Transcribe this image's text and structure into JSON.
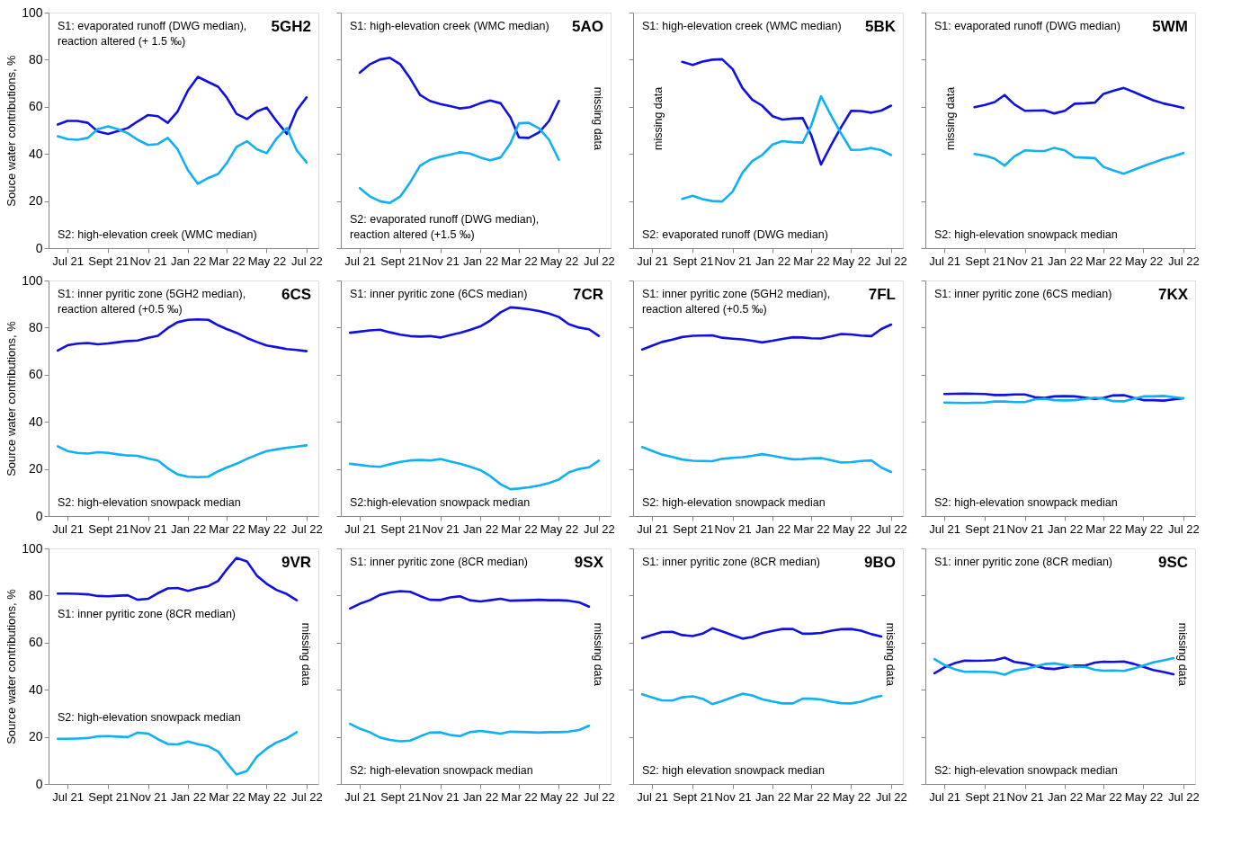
{
  "chart_data": [
    {
      "type": "line",
      "title": "5GH2",
      "ylabel": "Souce water contributions, %",
      "annotations": [
        "S1: evaporated runoff (DWG median),\n      reaction altered (+ 1.5 ‰)",
        "S2: high-elevation creek (WMC median)"
      ],
      "x": [
        "2021-06-16",
        "2021-07-01",
        "2021-07-16",
        "2021-08-01",
        "2021-08-16",
        "2021-09-01",
        "2021-09-16",
        "2021-10-01",
        "2021-10-16",
        "2021-11-01",
        "2021-11-16",
        "2021-12-01",
        "2021-12-16",
        "2022-01-01",
        "2022-01-16",
        "2022-02-01",
        "2022-02-16",
        "2022-03-01",
        "2022-03-16",
        "2022-04-01",
        "2022-04-16",
        "2022-05-01",
        "2022-05-16",
        "2022-06-01",
        "2022-06-16",
        "2022-07-01"
      ],
      "xlim": [
        "2021-06-02",
        "2022-07-19"
      ],
      "xticks": [
        {
          "value": "2021-07-01",
          "label": "Jul 21"
        },
        {
          "value": "2021-09-01",
          "label": "Sept 21"
        },
        {
          "value": "2021-11-01",
          "label": "Nov 21"
        },
        {
          "value": "2022-01-01",
          "label": "Jan 22"
        },
        {
          "value": "2022-03-01",
          "label": "Mar 22"
        },
        {
          "value": "2022-05-01",
          "label": "May 22"
        },
        {
          "value": "2022-07-01",
          "label": "Jul 22"
        }
      ],
      "ylim": [
        0,
        100
      ],
      "yticks": [
        0,
        20,
        40,
        60,
        80,
        100
      ],
      "series": [
        {
          "color": "#1010e0",
          "values": [
            52.5,
            54,
            54,
            53.2,
            49.5,
            48.5,
            49.7,
            51,
            53.8,
            56.5,
            56,
            53.2,
            58,
            67,
            72.7,
            70.5,
            68.5,
            64,
            57,
            54.8,
            58,
            59.7,
            54,
            48.5,
            58.5,
            64
          ]
        },
        {
          "color": "#10b0f5",
          "values": [
            47.5,
            46.3,
            46,
            46.8,
            50.5,
            51.7,
            50.5,
            48.8,
            46,
            43.8,
            44.2,
            46.8,
            42,
            33,
            27.3,
            29.8,
            31.5,
            36,
            43,
            45.4,
            42,
            40.3,
            46.5,
            51,
            41.5,
            36.4
          ]
        }
      ]
    },
    {
      "type": "line",
      "title": "5AO",
      "tick_labels": "x",
      "annotations": [
        "S1: high-elevation creek (WMC median)",
        "S2: evaporated runoff (DWG median),\n      reaction altered (+1.5 ‰)",
        "missing data"
      ],
      "x": [
        "2021-07-01",
        "2021-07-16",
        "2021-08-01",
        "2021-08-16",
        "2021-09-01",
        "2021-09-16",
        "2021-10-01",
        "2021-10-16",
        "2021-11-01",
        "2021-11-16",
        "2021-12-01",
        "2021-12-16",
        "2022-01-01",
        "2022-01-16",
        "2022-02-01",
        "2022-02-16",
        "2022-03-01",
        "2022-03-16",
        "2022-04-01",
        "2022-04-16",
        "2022-05-01"
      ],
      "xlim": [
        "2021-06-02",
        "2022-07-19"
      ],
      "xticks": [
        {
          "value": "2021-07-01",
          "label": "Jul 21"
        },
        {
          "value": "2021-09-01",
          "label": "Sept 21"
        },
        {
          "value": "2021-11-01",
          "label": "Nov 21"
        },
        {
          "value": "2022-01-01",
          "label": "Jan 22"
        },
        {
          "value": "2022-03-01",
          "label": "Mar 22"
        },
        {
          "value": "2022-05-01",
          "label": "May 22"
        },
        {
          "value": "2022-07-01",
          "label": "Jul 22"
        }
      ],
      "ylim": [
        0,
        100
      ],
      "yticks": [
        0,
        20,
        40,
        60,
        80,
        100
      ],
      "series": [
        {
          "color": "#1010e0",
          "values": [
            74.5,
            78,
            80.1,
            80.8,
            78,
            72,
            65,
            62.5,
            61.2,
            60.3,
            59.3,
            59.8,
            61.5,
            62.7,
            61.5,
            55.5,
            47,
            46.8,
            49.2,
            54,
            62.5
          ]
        },
        {
          "color": "#10b0f5",
          "values": [
            25.5,
            22,
            19.9,
            19.2,
            22,
            28,
            35,
            37.5,
            38.8,
            39.7,
            40.7,
            40.2,
            38.5,
            37.3,
            38.5,
            44.5,
            53,
            53.2,
            50.8,
            46,
            37.5
          ]
        }
      ]
    },
    {
      "type": "line",
      "title": "5BK",
      "tick_labels": "x",
      "annotations": [
        "S1: high-elevation creek (WMC median)",
        "S2: evaporated runoff (DWG median)",
        "missing data"
      ],
      "x": [
        "2021-08-16",
        "2021-09-01",
        "2021-09-16",
        "2021-10-01",
        "2021-10-16",
        "2021-11-01",
        "2021-11-16",
        "2021-12-01",
        "2021-12-16",
        "2022-01-01",
        "2022-01-16",
        "2022-02-01",
        "2022-02-16",
        "2022-03-01",
        "2022-03-16",
        "2022-04-01",
        "2022-04-16",
        "2022-05-01",
        "2022-05-16",
        "2022-06-01",
        "2022-06-16",
        "2022-07-01"
      ],
      "xlim": [
        "2021-06-02",
        "2022-07-19"
      ],
      "xticks": [
        {
          "value": "2021-07-01",
          "label": "Jul 21"
        },
        {
          "value": "2021-09-01",
          "label": "Sept 21"
        },
        {
          "value": "2021-11-01",
          "label": "Nov 21"
        },
        {
          "value": "2022-01-01",
          "label": "Jan 22"
        },
        {
          "value": "2022-03-01",
          "label": "Mar 22"
        },
        {
          "value": "2022-05-01",
          "label": "May 22"
        },
        {
          "value": "2022-07-01",
          "label": "Jul 22"
        }
      ],
      "ylim": [
        0,
        100
      ],
      "yticks": [
        0,
        20,
        40,
        60,
        80,
        100
      ],
      "series": [
        {
          "color": "#1010e0",
          "values": [
            79.1,
            77.8,
            79.2,
            80,
            80.2,
            76,
            68,
            63,
            60.5,
            56,
            54.6,
            55,
            55.2,
            48,
            35.5,
            44,
            51.5,
            58.3,
            58.2,
            57.5,
            58.4,
            60.5
          ]
        },
        {
          "color": "#10b0f5",
          "values": [
            20.9,
            22.2,
            20.8,
            20,
            19.8,
            24,
            32,
            37,
            39.5,
            44,
            45.4,
            45,
            44.8,
            52,
            64.5,
            56,
            48.5,
            41.7,
            41.8,
            42.5,
            41.6,
            39.5
          ]
        }
      ]
    },
    {
      "type": "line",
      "title": "5WM",
      "tick_labels": "x",
      "annotations": [
        "S1: evaporated runoff (DWG median)",
        "S2: high-elevation snowpack median",
        "missing data"
      ],
      "x": [
        "2021-08-16",
        "2021-09-01",
        "2021-09-16",
        "2021-10-01",
        "2021-10-16",
        "2021-11-01",
        "2021-11-16",
        "2021-12-01",
        "2021-12-16",
        "2022-01-01",
        "2022-01-16",
        "2022-02-01",
        "2022-02-16",
        "2022-03-01",
        "2022-03-16",
        "2022-04-01",
        "2022-04-16",
        "2022-05-01",
        "2022-05-16",
        "2022-06-01",
        "2022-06-16",
        "2022-07-01"
      ],
      "xlim": [
        "2021-06-02",
        "2022-07-19"
      ],
      "xticks": [
        {
          "value": "2021-07-01",
          "label": "Jul 21"
        },
        {
          "value": "2021-09-01",
          "label": "Sept 21"
        },
        {
          "value": "2021-11-01",
          "label": "Nov 21"
        },
        {
          "value": "2022-01-01",
          "label": "Jan 22"
        },
        {
          "value": "2022-03-01",
          "label": "Mar 22"
        },
        {
          "value": "2022-05-01",
          "label": "May 22"
        },
        {
          "value": "2022-07-01",
          "label": "Jul 22"
        }
      ],
      "ylim": [
        0,
        100
      ],
      "yticks": [
        0,
        20,
        40,
        60,
        80,
        100
      ],
      "series": [
        {
          "color": "#1010e0",
          "values": [
            59.8,
            60.8,
            62,
            65,
            61,
            58.3,
            58.4,
            58.5,
            57.2,
            58.3,
            61.3,
            61.5,
            61.8,
            65.5,
            66.8,
            68,
            66.3,
            64.5,
            62.8,
            61.4,
            60.5,
            59.5
          ]
        },
        {
          "color": "#10b0f5",
          "values": [
            40,
            39.2,
            38,
            35,
            39,
            41.5,
            41.3,
            41.2,
            42.6,
            41.5,
            38.6,
            38.4,
            38.2,
            34.5,
            33,
            31.6,
            33.2,
            34.8,
            36.3,
            37.9,
            39,
            40.4
          ]
        }
      ]
    },
    {
      "type": "line",
      "title": "6CS",
      "ylabel": "Source water contributions, %",
      "annotations": [
        "S1: inner pyritic zone (5GH2 median),\n      reaction altered (+0.5 ‰)",
        "S2: high-elevation snowpack median"
      ],
      "x": [
        "2021-06-16",
        "2021-07-01",
        "2021-07-16",
        "2021-08-01",
        "2021-08-16",
        "2021-09-01",
        "2021-09-16",
        "2021-10-01",
        "2021-10-16",
        "2021-11-01",
        "2021-11-16",
        "2021-12-01",
        "2021-12-16",
        "2022-01-01",
        "2022-01-16",
        "2022-02-01",
        "2022-02-16",
        "2022-03-01",
        "2022-03-16",
        "2022-04-01",
        "2022-04-16",
        "2022-05-01",
        "2022-05-16",
        "2022-06-01",
        "2022-06-16",
        "2022-07-01"
      ],
      "xlim": [
        "2021-06-02",
        "2022-07-19"
      ],
      "xticks": [
        {
          "value": "2021-07-01",
          "label": "Jul 21"
        },
        {
          "value": "2021-09-01",
          "label": "Sept 21"
        },
        {
          "value": "2021-11-01",
          "label": "Nov 21"
        },
        {
          "value": "2022-01-01",
          "label": "Jan 22"
        },
        {
          "value": "2022-03-01",
          "label": "Mar 22"
        },
        {
          "value": "2022-05-01",
          "label": "May 22"
        },
        {
          "value": "2022-07-01",
          "label": "Jul 22"
        }
      ],
      "ylim": [
        0,
        100
      ],
      "yticks": [
        0,
        20,
        40,
        60,
        80,
        100
      ],
      "series": [
        {
          "color": "#1010e0",
          "values": [
            70.3,
            72.5,
            73.2,
            73.5,
            72.9,
            73.3,
            73.8,
            74.3,
            74.5,
            75.7,
            76.5,
            79.8,
            82.3,
            83.3,
            83.5,
            83.3,
            81,
            79.4,
            77.8,
            75.6,
            73.9,
            72.4,
            71.7,
            70.9,
            70.5,
            70
          ]
        },
        {
          "color": "#10b0f5",
          "values": [
            29.6,
            27.6,
            26.8,
            26.5,
            27.1,
            26.8,
            26.2,
            25.7,
            25.6,
            24.4,
            23.6,
            20.3,
            17.7,
            16.7,
            16.5,
            16.7,
            19,
            20.6,
            22.2,
            24.3,
            26,
            27.6,
            28.3,
            29,
            29.5,
            30
          ]
        }
      ]
    },
    {
      "type": "line",
      "title": "7CR",
      "tick_labels": "x",
      "annotations": [
        "S1: inner pyritic zone (6CS median)",
        "S2:high-elevation snowpack median"
      ],
      "x": [
        "2021-06-16",
        "2021-07-01",
        "2021-07-16",
        "2021-08-01",
        "2021-08-16",
        "2021-09-01",
        "2021-09-16",
        "2021-10-01",
        "2021-10-16",
        "2021-11-01",
        "2021-11-16",
        "2021-12-01",
        "2021-12-16",
        "2022-01-01",
        "2022-01-16",
        "2022-02-01",
        "2022-02-16",
        "2022-03-01",
        "2022-03-16",
        "2022-04-01",
        "2022-04-16",
        "2022-05-01",
        "2022-05-16",
        "2022-06-01",
        "2022-06-16",
        "2022-07-01"
      ],
      "xlim": [
        "2021-06-02",
        "2022-07-19"
      ],
      "xticks": [
        {
          "value": "2021-07-01",
          "label": "Jul 21"
        },
        {
          "value": "2021-09-01",
          "label": "Sept 21"
        },
        {
          "value": "2021-11-01",
          "label": "Nov 21"
        },
        {
          "value": "2022-01-01",
          "label": "Jan 22"
        },
        {
          "value": "2022-03-01",
          "label": "Mar 22"
        },
        {
          "value": "2022-05-01",
          "label": "May 22"
        },
        {
          "value": "2022-07-01",
          "label": "Jul 22"
        }
      ],
      "ylim": [
        0,
        100
      ],
      "yticks": [
        0,
        20,
        40,
        60,
        80,
        100
      ],
      "series": [
        {
          "color": "#1010e0",
          "values": [
            77.8,
            78.3,
            78.8,
            79.1,
            78,
            77,
            76.4,
            76.2,
            76.4,
            75.8,
            76.8,
            77.8,
            79,
            80.5,
            83,
            86.5,
            88.6,
            88.3,
            87.8,
            87,
            86,
            84.5,
            81.5,
            80,
            79.3,
            76.5
          ]
        },
        {
          "color": "#10b0f5",
          "values": [
            22.2,
            21.7,
            21.2,
            20.9,
            22,
            23,
            23.6,
            23.8,
            23.6,
            24.2,
            23.2,
            22.2,
            21,
            19.5,
            17,
            13.5,
            11.4,
            11.7,
            12.2,
            13,
            14,
            15.5,
            18.5,
            20,
            20.7,
            23.5
          ]
        }
      ]
    },
    {
      "type": "line",
      "title": "7FL",
      "tick_labels": "x",
      "annotations": [
        "S1: inner pyritic zone (5GH2 median),\n      reaction altered (+0.5 ‰)",
        "S2: high-elevation snowpack median"
      ],
      "x": [
        "2021-06-16",
        "2021-07-01",
        "2021-07-16",
        "2021-08-01",
        "2021-08-16",
        "2021-09-01",
        "2021-09-16",
        "2021-10-01",
        "2021-10-16",
        "2021-11-01",
        "2021-11-16",
        "2021-12-01",
        "2021-12-16",
        "2022-01-01",
        "2022-01-16",
        "2022-02-01",
        "2022-02-16",
        "2022-03-01",
        "2022-03-16",
        "2022-04-01",
        "2022-04-16",
        "2022-05-01",
        "2022-05-16",
        "2022-06-01",
        "2022-06-16",
        "2022-07-01"
      ],
      "xlim": [
        "2021-06-02",
        "2022-07-19"
      ],
      "xticks": [
        {
          "value": "2021-07-01",
          "label": "Jul 21"
        },
        {
          "value": "2021-09-01",
          "label": "Sept 21"
        },
        {
          "value": "2021-11-01",
          "label": "Nov 21"
        },
        {
          "value": "2022-01-01",
          "label": "Jan 22"
        },
        {
          "value": "2022-03-01",
          "label": "Mar 22"
        },
        {
          "value": "2022-05-01",
          "label": "May 22"
        },
        {
          "value": "2022-07-01",
          "label": "Jul 22"
        }
      ],
      "ylim": [
        0,
        100
      ],
      "yticks": [
        0,
        20,
        40,
        60,
        80,
        100
      ],
      "series": [
        {
          "color": "#1010e0",
          "values": [
            70.7,
            72.3,
            73.9,
            74.9,
            76,
            76.5,
            76.6,
            76.7,
            75.7,
            75.3,
            75,
            74.4,
            73.7,
            74.4,
            75.2,
            75.9,
            75.8,
            75.5,
            75.4,
            76.3,
            77.3,
            77.1,
            76.6,
            76.4,
            79.4,
            81.3
          ]
        },
        {
          "color": "#10b0f5",
          "values": [
            29.3,
            27.7,
            26.1,
            25.1,
            24,
            23.5,
            23.4,
            23.3,
            24.3,
            24.7,
            25,
            25.6,
            26.3,
            25.6,
            24.8,
            24.1,
            24.2,
            24.5,
            24.6,
            23.7,
            22.7,
            22.9,
            23.4,
            23.6,
            20.6,
            18.7
          ]
        }
      ]
    },
    {
      "type": "line",
      "title": "7KX",
      "tick_labels": "x",
      "annotations": [
        "S1: inner pyritic zone (6CS median)",
        "S2: high-elevation snowpack median"
      ],
      "x": [
        "2021-07-01",
        "2021-07-16",
        "2021-08-01",
        "2021-08-16",
        "2021-09-01",
        "2021-09-16",
        "2021-10-01",
        "2021-10-16",
        "2021-11-01",
        "2021-11-16",
        "2021-12-01",
        "2021-12-16",
        "2022-01-01",
        "2022-01-16",
        "2022-02-01",
        "2022-02-16",
        "2022-03-01",
        "2022-03-16",
        "2022-04-01",
        "2022-04-16",
        "2022-05-01",
        "2022-05-16",
        "2022-06-01",
        "2022-06-16",
        "2022-07-01"
      ],
      "xlim": [
        "2021-06-02",
        "2022-07-19"
      ],
      "xticks": [
        {
          "value": "2021-07-01",
          "label": "Jul 21"
        },
        {
          "value": "2021-09-01",
          "label": "Sept 21"
        },
        {
          "value": "2021-11-01",
          "label": "Nov 21"
        },
        {
          "value": "2022-01-01",
          "label": "Jan 22"
        },
        {
          "value": "2022-03-01",
          "label": "Mar 22"
        },
        {
          "value": "2022-05-01",
          "label": "May 22"
        },
        {
          "value": "2022-07-01",
          "label": "Jul 22"
        }
      ],
      "ylim": [
        0,
        100
      ],
      "yticks": [
        0,
        20,
        40,
        60,
        80,
        100
      ],
      "series": [
        {
          "color": "#1010e0",
          "values": [
            51.8,
            51.9,
            52,
            51.9,
            51.8,
            51.4,
            51.4,
            51.6,
            51.6,
            50.5,
            50.2,
            50.8,
            50.9,
            50.8,
            50.3,
            49.7,
            50.2,
            51.2,
            51.3,
            50.2,
            49.2,
            49.2,
            49,
            49.5,
            50
          ]
        },
        {
          "color": "#10b0f5",
          "values": [
            48.2,
            48.1,
            48,
            48.1,
            48.2,
            48.6,
            48.6,
            48.4,
            48.4,
            49.5,
            49.8,
            49.2,
            49.1,
            49.2,
            49.7,
            50.3,
            49.8,
            48.8,
            48.7,
            49.8,
            50.8,
            50.8,
            51,
            50.5,
            50
          ]
        }
      ]
    },
    {
      "type": "line",
      "title": "9VR",
      "ylabel": "Source water contributions, %",
      "annotations": [
        "S1: inner pyritic zone (8CR median)",
        "S2: high-elevation snowpack median",
        "missing data"
      ],
      "x": [
        "2021-06-16",
        "2021-07-01",
        "2021-07-16",
        "2021-08-01",
        "2021-08-16",
        "2021-09-01",
        "2021-09-16",
        "2021-10-01",
        "2021-10-16",
        "2021-11-01",
        "2021-11-16",
        "2021-12-01",
        "2021-12-16",
        "2022-01-01",
        "2022-01-16",
        "2022-02-01",
        "2022-02-16",
        "2022-03-01",
        "2022-03-16",
        "2022-04-01",
        "2022-04-16",
        "2022-05-01",
        "2022-05-16",
        "2022-06-01",
        "2022-06-16"
      ],
      "xlim": [
        "2021-06-02",
        "2022-07-19"
      ],
      "xticks": [
        {
          "value": "2021-07-01",
          "label": "Jul 21"
        },
        {
          "value": "2021-09-01",
          "label": "Sept 21"
        },
        {
          "value": "2021-11-01",
          "label": "Nov 21"
        },
        {
          "value": "2022-01-01",
          "label": "Jan 22"
        },
        {
          "value": "2022-03-01",
          "label": "Mar 22"
        },
        {
          "value": "2022-05-01",
          "label": "May 22"
        },
        {
          "value": "2022-07-01",
          "label": "Jul 22"
        }
      ],
      "ylim": [
        0,
        100
      ],
      "yticks": [
        0,
        20,
        40,
        60,
        80,
        100
      ],
      "series": [
        {
          "color": "#1010e0",
          "values": [
            80.8,
            80.8,
            80.7,
            80.5,
            79.8,
            79.7,
            79.9,
            80.1,
            78.2,
            78.6,
            81,
            83,
            83.2,
            82,
            83.1,
            84,
            86.2,
            91,
            96,
            94.5,
            88.5,
            85,
            82.4,
            80.6,
            78
          ]
        },
        {
          "color": "#10b0f5",
          "values": [
            19.2,
            19.2,
            19.3,
            19.5,
            20.2,
            20.3,
            20.1,
            19.9,
            21.8,
            21.4,
            19,
            17,
            16.8,
            18,
            16.9,
            16,
            13.8,
            9,
            4,
            5.5,
            11.5,
            15,
            17.6,
            19.4,
            22
          ]
        }
      ]
    },
    {
      "type": "line",
      "title": "9SX",
      "tick_labels": "x",
      "annotations": [
        "S1: inner pyritic zone (8CR median)",
        "S2: high-elevation snowpack median",
        "missing data"
      ],
      "x": [
        "2021-06-16",
        "2021-07-01",
        "2021-07-16",
        "2021-08-01",
        "2021-08-16",
        "2021-09-01",
        "2021-09-16",
        "2021-10-01",
        "2021-10-16",
        "2021-11-01",
        "2021-11-16",
        "2021-12-01",
        "2021-12-16",
        "2022-01-01",
        "2022-01-16",
        "2022-02-01",
        "2022-02-16",
        "2022-03-01",
        "2022-03-16",
        "2022-04-01",
        "2022-04-16",
        "2022-05-01",
        "2022-05-16",
        "2022-06-01",
        "2022-06-16"
      ],
      "xlim": [
        "2021-06-02",
        "2022-07-19"
      ],
      "xticks": [
        {
          "value": "2021-07-01",
          "label": "Jul 21"
        },
        {
          "value": "2021-09-01",
          "label": "Sept 21"
        },
        {
          "value": "2021-11-01",
          "label": "Nov 21"
        },
        {
          "value": "2022-01-01",
          "label": "Jan 22"
        },
        {
          "value": "2022-03-01",
          "label": "Mar 22"
        },
        {
          "value": "2022-05-01",
          "label": "May 22"
        },
        {
          "value": "2022-07-01",
          "label": "Jul 22"
        }
      ],
      "ylim": [
        0,
        100
      ],
      "yticks": [
        0,
        20,
        40,
        60,
        80,
        100
      ],
      "series": [
        {
          "color": "#1010e0",
          "values": [
            74.5,
            76.5,
            78,
            80.3,
            81.3,
            81.9,
            81.6,
            79.8,
            78.2,
            78.1,
            79.2,
            79.7,
            78,
            77.5,
            78,
            78.6,
            77.8,
            77.9,
            78,
            78.2,
            78,
            78,
            77.8,
            77.1,
            75.3
          ]
        },
        {
          "color": "#10b0f5",
          "values": [
            25.5,
            23.5,
            22,
            19.7,
            18.7,
            18.1,
            18.4,
            20.2,
            21.8,
            21.9,
            20.8,
            20.3,
            22,
            22.5,
            22,
            21.4,
            22.2,
            22.1,
            22,
            21.8,
            22,
            22,
            22.2,
            22.9,
            24.7
          ]
        }
      ]
    },
    {
      "type": "line",
      "title": "9BO",
      "tick_labels": "x",
      "annotations": [
        "S1: inner pyritic zone (8CR median)",
        "S2: high elevation snowpack median",
        "missing data"
      ],
      "x": [
        "2021-06-16",
        "2021-07-01",
        "2021-07-16",
        "2021-08-01",
        "2021-08-16",
        "2021-09-01",
        "2021-09-16",
        "2021-10-01",
        "2021-10-16",
        "2021-11-01",
        "2021-11-16",
        "2021-12-01",
        "2021-12-16",
        "2022-01-01",
        "2022-01-16",
        "2022-02-01",
        "2022-02-16",
        "2022-03-01",
        "2022-03-16",
        "2022-04-01",
        "2022-04-16",
        "2022-05-01",
        "2022-05-16",
        "2022-06-01",
        "2022-06-16"
      ],
      "xlim": [
        "2021-06-02",
        "2022-07-19"
      ],
      "xticks": [
        {
          "value": "2021-07-01",
          "label": "Jul 21"
        },
        {
          "value": "2021-09-01",
          "label": "Sept 21"
        },
        {
          "value": "2021-11-01",
          "label": "Nov 21"
        },
        {
          "value": "2022-01-01",
          "label": "Jan 22"
        },
        {
          "value": "2022-03-01",
          "label": "Mar 22"
        },
        {
          "value": "2022-05-01",
          "label": "May 22"
        },
        {
          "value": "2022-07-01",
          "label": "Jul 22"
        }
      ],
      "ylim": [
        0,
        100
      ],
      "yticks": [
        0,
        20,
        40,
        60,
        80,
        100
      ],
      "series": [
        {
          "color": "#1010e0",
          "values": [
            61.9,
            63.3,
            64.5,
            64.6,
            63.2,
            62.8,
            63.8,
            66.1,
            64.8,
            63.2,
            61.7,
            62.4,
            64,
            65,
            65.8,
            65.8,
            63.8,
            63.8,
            64.1,
            65.1,
            65.7,
            65.8,
            65.1,
            63.6,
            62.6
          ]
        },
        {
          "color": "#10b0f5",
          "values": [
            38.1,
            36.7,
            35.5,
            35.4,
            36.8,
            37.2,
            36.2,
            33.9,
            35.2,
            36.8,
            38.3,
            37.6,
            36,
            35,
            34.2,
            34.2,
            36.2,
            36.2,
            35.9,
            34.9,
            34.3,
            34.2,
            34.9,
            36.4,
            37.4
          ]
        }
      ]
    },
    {
      "type": "line",
      "title": "9SC",
      "tick_labels": "x",
      "annotations": [
        "S1: inner pyritic zone (8CR median)",
        "S2: high-elevation snowpack median",
        "missing data"
      ],
      "x": [
        "2021-06-16",
        "2021-07-01",
        "2021-07-16",
        "2021-08-01",
        "2021-08-16",
        "2021-09-01",
        "2021-09-16",
        "2021-10-01",
        "2021-10-16",
        "2021-11-01",
        "2021-11-16",
        "2021-12-01",
        "2021-12-16",
        "2022-01-01",
        "2022-01-16",
        "2022-02-01",
        "2022-02-16",
        "2022-03-01",
        "2022-03-16",
        "2022-04-01",
        "2022-04-16",
        "2022-05-01",
        "2022-05-16",
        "2022-06-01",
        "2022-06-16"
      ],
      "xlim": [
        "2021-06-02",
        "2022-07-19"
      ],
      "xticks": [
        {
          "value": "2021-07-01",
          "label": "Jul 21"
        },
        {
          "value": "2021-09-01",
          "label": "Sept 21"
        },
        {
          "value": "2021-11-01",
          "label": "Nov 21"
        },
        {
          "value": "2022-01-01",
          "label": "Jan 22"
        },
        {
          "value": "2022-03-01",
          "label": "Mar 22"
        },
        {
          "value": "2022-05-01",
          "label": "May 22"
        },
        {
          "value": "2022-07-01",
          "label": "Jul 22"
        }
      ],
      "ylim": [
        0,
        100
      ],
      "yticks": [
        0,
        20,
        40,
        60,
        80,
        100
      ],
      "series": [
        {
          "color": "#1010e0",
          "values": [
            47,
            49.5,
            51.2,
            52.4,
            52.3,
            52.4,
            52.6,
            53.6,
            51.8,
            51.2,
            50.2,
            49.1,
            48.8,
            49.5,
            50.3,
            50.3,
            51.5,
            51.9,
            51.8,
            52,
            51,
            49.7,
            48.4,
            47.5,
            46.6
          ]
        },
        {
          "color": "#10b0f5",
          "values": [
            53,
            50.5,
            48.8,
            47.6,
            47.7,
            47.6,
            47.4,
            46.4,
            48.2,
            48.8,
            49.8,
            50.9,
            51.2,
            50.5,
            49.7,
            49.7,
            48.5,
            48.1,
            48.2,
            48,
            49,
            50.3,
            51.6,
            52.5,
            53.4
          ]
        }
      ]
    }
  ]
}
